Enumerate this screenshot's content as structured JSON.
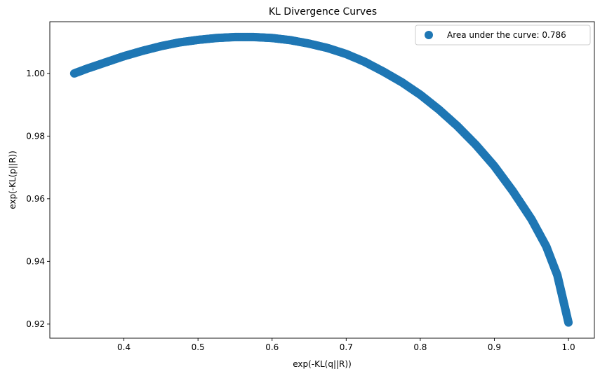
{
  "chart_data": {
    "type": "scatter",
    "title": "KL Divergence Curves",
    "xlabel": "exp(-KL(q||R))",
    "ylabel": "exp(-KL(p||R))",
    "xlim": [
      0.3,
      1.035
    ],
    "ylim": [
      0.9155,
      1.0165
    ],
    "xticks": [
      0.4,
      0.5,
      0.6,
      0.7,
      0.8,
      0.9,
      1.0
    ],
    "xtick_labels": [
      "0.4",
      "0.5",
      "0.6",
      "0.7",
      "0.8",
      "0.9",
      "1.0"
    ],
    "yticks": [
      0.92,
      0.94,
      0.96,
      0.98,
      1.0
    ],
    "ytick_labels": [
      "0.92",
      "0.94",
      "0.96",
      "0.98",
      "1.00"
    ],
    "grid": false,
    "legend_position": "top-right",
    "series": [
      {
        "name": "Area under the curve: 0.786",
        "color": "#1f77b4",
        "x": [
          0.333,
          0.35,
          0.375,
          0.4,
          0.425,
          0.45,
          0.475,
          0.5,
          0.525,
          0.55,
          0.575,
          0.6,
          0.625,
          0.65,
          0.675,
          0.7,
          0.725,
          0.75,
          0.775,
          0.8,
          0.825,
          0.85,
          0.875,
          0.9,
          0.925,
          0.95,
          0.97,
          0.985,
          1.0
        ],
        "y": [
          1.0,
          1.0015,
          1.0035,
          1.0055,
          1.0072,
          1.0087,
          1.0099,
          1.0107,
          1.0113,
          1.0116,
          1.0116,
          1.0113,
          1.0106,
          1.0095,
          1.0081,
          1.0062,
          1.0037,
          1.0006,
          0.9972,
          0.9932,
          0.9885,
          0.9832,
          0.9772,
          0.9704,
          0.9624,
          0.9535,
          0.9448,
          0.9356,
          0.9205
        ]
      }
    ]
  }
}
